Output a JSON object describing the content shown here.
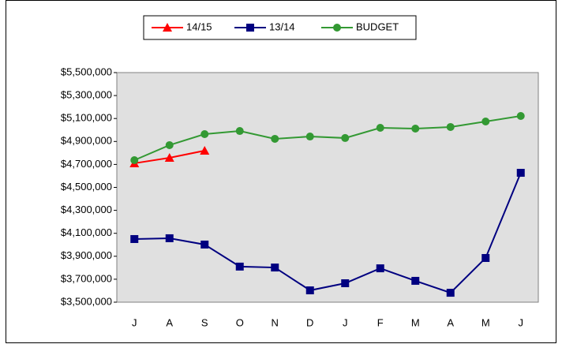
{
  "chart_data": {
    "type": "line",
    "categories": [
      "J",
      "A",
      "S",
      "O",
      "N",
      "D",
      "J",
      "F",
      "M",
      "A",
      "M",
      "J"
    ],
    "series": [
      {
        "name": "14/15",
        "color": "#ff0000",
        "marker": "triangle",
        "values": [
          4710000,
          4758000,
          4820000,
          null,
          null,
          null,
          null,
          null,
          null,
          null,
          null,
          null
        ]
      },
      {
        "name": "13/14",
        "color": "#000080",
        "marker": "square",
        "values": [
          4050000,
          4057000,
          4002000,
          3810000,
          3802000,
          3603000,
          3665000,
          3795000,
          3686000,
          3582000,
          3885000,
          4627000
        ]
      },
      {
        "name": "BUDGET",
        "color": "#339933",
        "marker": "circle",
        "values": [
          4737000,
          4868000,
          4964000,
          4991000,
          4923000,
          4943000,
          4930000,
          5019000,
          5012000,
          5026000,
          5074000,
          5122000
        ]
      }
    ],
    "ylim": [
      3500000,
      5500000
    ],
    "yticks": [
      {
        "value": 3500000,
        "label": "$3,500,000"
      },
      {
        "value": 3700000,
        "label": "$3,700,000"
      },
      {
        "value": 3900000,
        "label": "$3,900,000"
      },
      {
        "value": 4100000,
        "label": "$4,100,000"
      },
      {
        "value": 4300000,
        "label": "$4,300,000"
      },
      {
        "value": 4500000,
        "label": "$4,500,000"
      },
      {
        "value": 4700000,
        "label": "$4,700,000"
      },
      {
        "value": 4900000,
        "label": "$4,900,000"
      },
      {
        "value": 5100000,
        "label": "$5,100,000"
      },
      {
        "value": 5300000,
        "label": "$5,300,000"
      },
      {
        "value": 5500000,
        "label": "$5,500,000"
      }
    ],
    "legend": "top"
  }
}
